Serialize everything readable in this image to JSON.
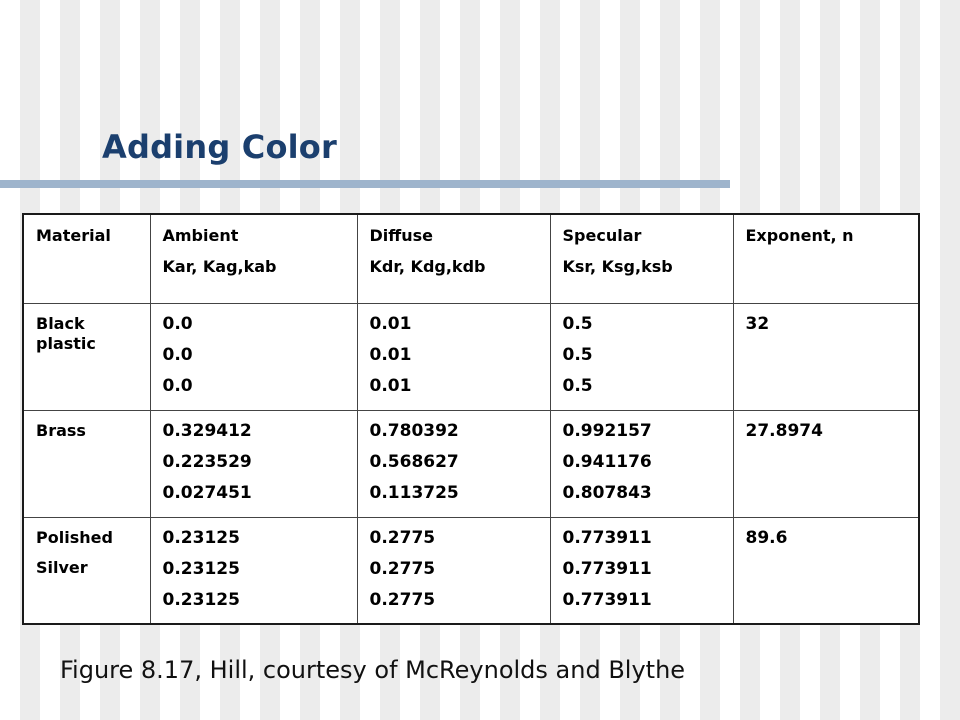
{
  "slide": {
    "title": "Adding Color",
    "caption": "Figure 8.17, Hill, courtesy of McReynolds and Blythe"
  },
  "table": {
    "headers": [
      [
        "Material"
      ],
      [
        "Ambient",
        "Kar, Kag,kab"
      ],
      [
        "Diffuse",
        "Kdr, Kdg,kdb"
      ],
      [
        "Specular",
        "Ksr, Ksg,ksb"
      ],
      [
        "Exponent, n"
      ]
    ],
    "rows": [
      {
        "material": [
          "Black plastic"
        ],
        "ambient": [
          "0.0",
          "0.0",
          "0.0"
        ],
        "diffuse": [
          "0.01",
          "0.01",
          "0.01"
        ],
        "specular": [
          "0.5",
          "0.5",
          "0.5"
        ],
        "exponent": "32"
      },
      {
        "material": [
          "Brass"
        ],
        "ambient": [
          "0.329412",
          "0.223529",
          "0.027451"
        ],
        "diffuse": [
          "0.780392",
          "0.568627",
          "0.113725"
        ],
        "specular": [
          "0.992157",
          "0.941176",
          "0.807843"
        ],
        "exponent": "27.8974"
      },
      {
        "material": [
          "Polished",
          "Silver"
        ],
        "ambient": [
          "0.23125",
          "0.23125",
          "0.23125"
        ],
        "diffuse": [
          "0.2775",
          "0.2775",
          "0.2775"
        ],
        "specular": [
          "0.773911",
          "0.773911",
          "0.773911"
        ],
        "exponent": "89.6"
      }
    ]
  },
  "colors": {
    "title": "#1b3f6e",
    "rule": "#9eb4cc"
  }
}
